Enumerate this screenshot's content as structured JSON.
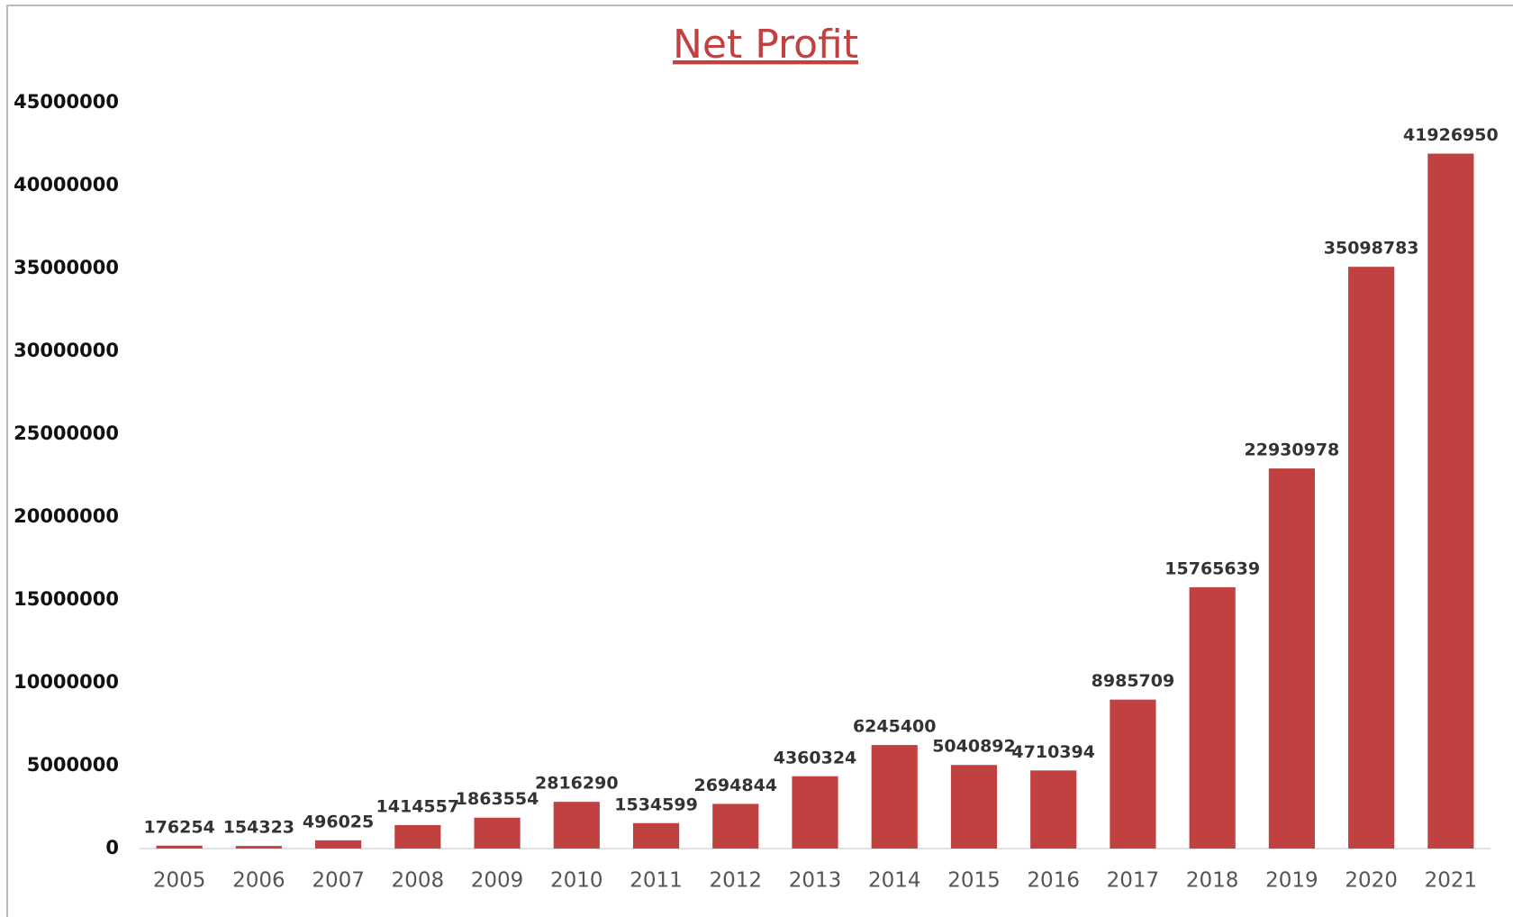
{
  "chart_data": {
    "type": "bar",
    "title": "Net Profit",
    "categories": [
      "2005",
      "2006",
      "2007",
      "2008",
      "2009",
      "2010",
      "2011",
      "2012",
      "2013",
      "2014",
      "2015",
      "2016",
      "2017",
      "2018",
      "2019",
      "2020",
      "2021"
    ],
    "values": [
      176254,
      154323,
      496025,
      1414557,
      1863554,
      2816290,
      1534599,
      2694844,
      4360324,
      6245400,
      5040892,
      4710394,
      8985709,
      15765639,
      22930978,
      35098783,
      41926950
    ],
    "color": "#c0413f",
    "ylim": [
      0,
      45000000
    ],
    "yticks": [
      0,
      5000000,
      10000000,
      15000000,
      20000000,
      25000000,
      30000000,
      35000000,
      40000000,
      45000000
    ],
    "grid": false
  }
}
